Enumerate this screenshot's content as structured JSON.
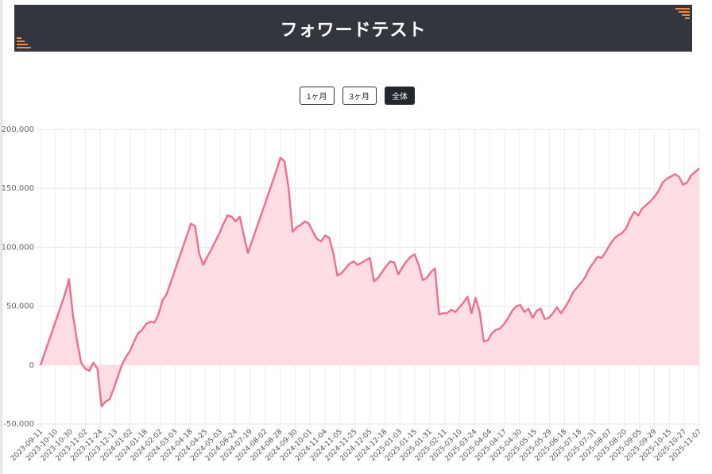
{
  "header": {
    "title": "フォワードテスト"
  },
  "range_buttons": [
    {
      "label": "1ヶ月",
      "active": false
    },
    {
      "label": "3ヶ月",
      "active": false
    },
    {
      "label": "全体",
      "active": true
    }
  ],
  "colors": {
    "header_bg": "#33363d",
    "accent_stripes": "#f08a4b",
    "line": "#f06e8c",
    "fill": "#ffdde4",
    "active_button": "#23262c"
  },
  "chart_data": {
    "type": "area",
    "title": "",
    "xlabel": "",
    "ylabel": "",
    "ylim": [
      -50000,
      200000
    ],
    "yticks": [
      -50000,
      0,
      50000,
      100000,
      150000,
      200000
    ],
    "ytick_labels": [
      "-50,000",
      "0",
      "50,000",
      "100,000",
      "150,000",
      "200,000"
    ],
    "x_tick_labels": [
      "2023-09-11",
      "2023-10-10",
      "2023-10-30",
      "2023-11-02",
      "2023-11-24",
      "2023-12-13",
      "2024-01-02",
      "2024-01-18",
      "2024-02-02",
      "2024-03-03",
      "2024-04-18",
      "2024-04-25",
      "2024-05-03",
      "2024-06-24",
      "2024-07-19",
      "2024-08-02",
      "2024-08-28",
      "2024-09-30",
      "2024-10-01",
      "2024-11-04",
      "2024-11-05",
      "2024-11-25",
      "2024-12-05",
      "2024-12-18",
      "2025-01-03",
      "2025-01-15",
      "2025-01-31",
      "2025-02-11",
      "2025-03-10",
      "2025-03-24",
      "2025-04-04",
      "2025-04-17",
      "2025-04-30",
      "2025-05-15",
      "2025-05-29",
      "2025-06-18",
      "2025-07-18",
      "2025-07-31",
      "2025-08-07",
      "2025-08-20",
      "2025-09-05",
      "2025-09-29",
      "2025-10-15",
      "2025-10-27",
      "2025-11-07"
    ],
    "series": [
      {
        "values": [
          0,
          10000,
          20000,
          30000,
          40000,
          50000,
          60000,
          73000,
          42000,
          20000,
          2000,
          -3000,
          -5000,
          2000,
          -3000,
          -35000,
          -31000,
          -29000,
          -20000,
          -10000,
          0,
          7000,
          12000,
          20000,
          27000,
          30000,
          35000,
          37000,
          36000,
          43000,
          55000,
          60000,
          70000,
          80000,
          90000,
          100000,
          110000,
          120000,
          118000,
          95000,
          85000,
          92000,
          98000,
          105000,
          112000,
          120000,
          127000,
          126000,
          122000,
          126000,
          110000,
          95000,
          105000,
          115000,
          125000,
          135000,
          145000,
          155000,
          165000,
          176000,
          173000,
          150000,
          113000,
          117000,
          119000,
          122000,
          120000,
          113000,
          107000,
          105000,
          110000,
          108000,
          95000,
          76000,
          78000,
          82000,
          86000,
          88000,
          85000,
          87000,
          89000,
          91000,
          71000,
          74000,
          79000,
          84000,
          88000,
          87000,
          77000,
          83000,
          88000,
          92000,
          94000,
          85000,
          72000,
          74000,
          79000,
          82000,
          43000,
          44000,
          44000,
          47000,
          45000,
          49000,
          53000,
          58000,
          44000,
          57000,
          45000,
          20000,
          21000,
          27000,
          30000,
          31000,
          35000,
          40000,
          46000,
          50000,
          51000,
          45000,
          48000,
          40000,
          46000,
          48000,
          39000,
          40000,
          44000,
          49000,
          44000,
          49000,
          55000,
          62000,
          66000,
          70000,
          75000,
          82000,
          87000,
          92000,
          91000,
          96000,
          102000,
          107000,
          110000,
          112000,
          116000,
          124000,
          130000,
          127000,
          133000,
          136000,
          139000,
          143000,
          148000,
          155000,
          158000,
          160000,
          162000,
          160000,
          153000,
          155000,
          161000,
          164000,
          167000
        ]
      }
    ],
    "grid": true,
    "legend": "none"
  }
}
